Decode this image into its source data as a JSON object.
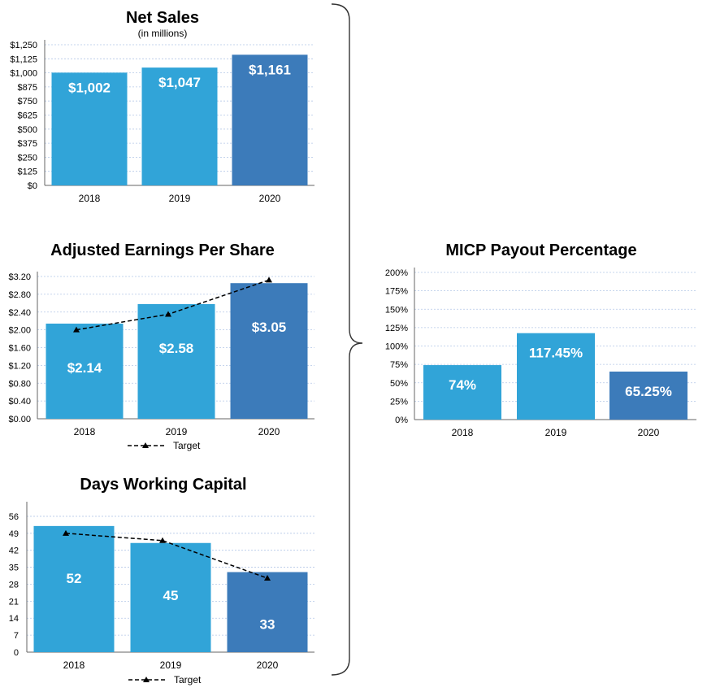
{
  "chart_data": [
    {
      "id": "netsales",
      "type": "bar",
      "title": "Net Sales",
      "subtitle": "(in millions)",
      "categories": [
        "2018",
        "2019",
        "2020"
      ],
      "values": [
        1002,
        1047,
        1161
      ],
      "value_labels": [
        "$1,002",
        "$1,047",
        "$1,161"
      ],
      "yticks": [
        "$0",
        "$125",
        "$250",
        "$375",
        "$500",
        "$625",
        "$750",
        "$875",
        "$1,000",
        "$1,125",
        "$1,250"
      ],
      "ylim": [
        0,
        1250
      ],
      "bar_colors": [
        "#31A4D8",
        "#31A4D8",
        "#3C7BBA"
      ],
      "grid": true
    },
    {
      "id": "eps",
      "type": "bar",
      "title": "Adjusted Earnings Per Share",
      "categories": [
        "2018",
        "2019",
        "2020"
      ],
      "values": [
        2.14,
        2.58,
        3.05
      ],
      "value_labels": [
        "$2.14",
        "$2.58",
        "$3.05"
      ],
      "target": [
        2.0,
        2.35,
        3.12
      ],
      "target_label": "Target",
      "yticks": [
        "$0.00",
        "$0.40",
        "$0.80",
        "$1.20",
        "$1.60",
        "$2.00",
        "$2.40",
        "$2.80",
        "$3.20"
      ],
      "ylim": [
        0,
        3.2
      ],
      "bar_colors": [
        "#31A4D8",
        "#31A4D8",
        "#3C7BBA"
      ],
      "grid": true
    },
    {
      "id": "dwc",
      "type": "bar",
      "title": "Days Working Capital",
      "categories": [
        "2018",
        "2019",
        "2020"
      ],
      "values": [
        52,
        45,
        33
      ],
      "value_labels": [
        "52",
        "45",
        "33"
      ],
      "target": [
        49,
        46,
        30.5
      ],
      "target_label": "Target",
      "yticks": [
        "0",
        "7",
        "14",
        "21",
        "28",
        "35",
        "42",
        "49",
        "56"
      ],
      "ylim": [
        0,
        60
      ],
      "bar_colors": [
        "#31A4D8",
        "#31A4D8",
        "#3C7BBA"
      ],
      "grid": true
    },
    {
      "id": "micp",
      "type": "bar",
      "title": "MICP Payout Percentage",
      "categories": [
        "2018",
        "2019",
        "2020"
      ],
      "values": [
        74,
        117.45,
        65.25
      ],
      "value_labels": [
        "74%",
        "117.45%",
        "65.25%"
      ],
      "yticks": [
        "0%",
        "25%",
        "50%",
        "75%",
        "100%",
        "125%",
        "150%",
        "175%",
        "200%"
      ],
      "ylim": [
        0,
        200
      ],
      "bar_colors": [
        "#31A4D8",
        "#31A4D8",
        "#3C7BBA"
      ],
      "grid": true
    }
  ]
}
